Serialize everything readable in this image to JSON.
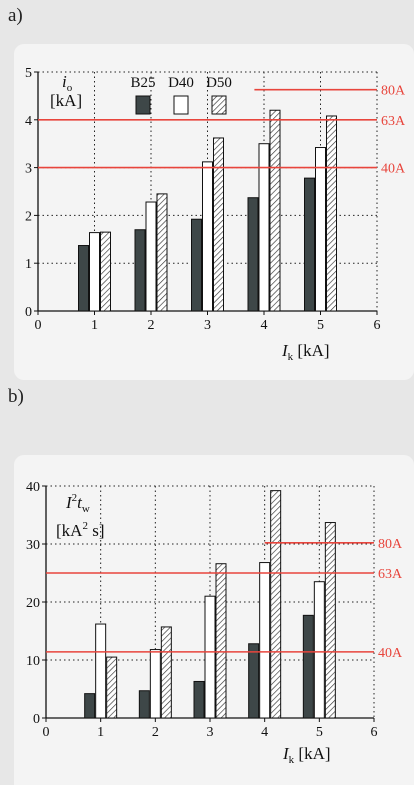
{
  "panel_a_label": "a)",
  "panel_b_label": "b)",
  "chart_data": [
    {
      "type": "bar",
      "x": [
        1,
        2,
        3,
        4,
        5
      ],
      "xlim": [
        0,
        6
      ],
      "ylim": [
        0,
        5
      ],
      "x_ticks": [
        "0",
        "1",
        "2",
        "3",
        "4",
        "5",
        "6"
      ],
      "y_ticks": [
        "0",
        "1",
        "2",
        "3",
        "4",
        "5"
      ],
      "xlabel_main": "I",
      "xlabel_sub": "k",
      "xlabel_unit": "[kA]",
      "ylabel_main": "i",
      "ylabel_sub": "o",
      "ylabel_unit": "[kA]",
      "legend_position": "top-center",
      "grid": "dotted",
      "series": [
        {
          "name": "B25",
          "fill": "dark",
          "values": [
            1.37,
            1.7,
            1.92,
            2.37,
            2.78
          ]
        },
        {
          "name": "D40",
          "fill": "white",
          "values": [
            1.64,
            2.28,
            3.12,
            3.5,
            3.42
          ]
        },
        {
          "name": "D50",
          "fill": "hatched",
          "values": [
            1.65,
            2.45,
            3.62,
            4.2,
            4.08
          ]
        }
      ],
      "reference_lines": [
        {
          "label": "80A",
          "y": 4.63,
          "x_from": 3.83,
          "x_to": 6
        },
        {
          "label": "63A",
          "y": 4.0,
          "x_from": 0,
          "x_to": 6
        },
        {
          "label": "40A",
          "y": 3.0,
          "x_from": 0,
          "x_to": 6
        }
      ],
      "colors": {
        "reference": "#e8453c",
        "dark_bar": "#3e4748"
      }
    },
    {
      "type": "bar",
      "x": [
        1,
        2,
        3,
        4,
        5
      ],
      "xlim": [
        0,
        6
      ],
      "ylim": [
        0,
        40
      ],
      "x_ticks": [
        "0",
        "1",
        "2",
        "3",
        "4",
        "5",
        "6"
      ],
      "y_ticks": [
        "0",
        "10",
        "20",
        "30",
        "40"
      ],
      "xlabel_main": "I",
      "xlabel_sub": "k",
      "xlabel_unit": "[kA]",
      "ylabel_main": "I",
      "ylabel_sup": "2",
      "ylabel_t": "t",
      "ylabel_sub": "w",
      "ylabel_unit_pre": "[kA",
      "ylabel_unit_sup": "2",
      "ylabel_unit_post": "s]",
      "grid": "dotted",
      "series": [
        {
          "name": "B25",
          "fill": "dark",
          "values": [
            4.2,
            4.7,
            6.3,
            12.8,
            17.7
          ]
        },
        {
          "name": "D40",
          "fill": "white",
          "values": [
            16.2,
            11.8,
            21.0,
            26.8,
            23.5
          ]
        },
        {
          "name": "D50",
          "fill": "hatched",
          "values": [
            10.5,
            15.7,
            26.6,
            39.2,
            33.7
          ]
        }
      ],
      "reference_lines": [
        {
          "label": "80A",
          "y": 30.2,
          "x_from": 4.0,
          "x_to": 6
        },
        {
          "label": "63A",
          "y": 25.0,
          "x_from": 0,
          "x_to": 6
        },
        {
          "label": "40A",
          "y": 11.4,
          "x_from": 0,
          "x_to": 6
        }
      ],
      "colors": {
        "reference": "#e8453c",
        "dark_bar": "#3e4748"
      }
    }
  ]
}
